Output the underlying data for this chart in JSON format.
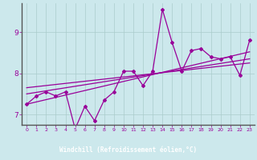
{
  "xlabel": "Windchill (Refroidissement éolien,°C)",
  "bg_color": "#cce8ec",
  "xlabel_bg": "#7b2d8b",
  "line_color": "#990099",
  "grid_color": "#aacccc",
  "xlim": [
    -0.5,
    23.5
  ],
  "ylim": [
    6.75,
    9.7
  ],
  "yticks": [
    7,
    8,
    9
  ],
  "xticks": [
    0,
    1,
    2,
    3,
    4,
    5,
    6,
    7,
    8,
    9,
    10,
    11,
    12,
    13,
    14,
    15,
    16,
    17,
    18,
    19,
    20,
    21,
    22,
    23
  ],
  "main_x": [
    0,
    1,
    2,
    3,
    4,
    5,
    6,
    7,
    8,
    9,
    10,
    11,
    12,
    13,
    14,
    15,
    16,
    17,
    18,
    19,
    20,
    21,
    22,
    23
  ],
  "main_y": [
    7.25,
    7.45,
    7.55,
    7.45,
    7.55,
    6.65,
    7.2,
    6.85,
    7.35,
    7.55,
    8.05,
    8.05,
    7.7,
    8.05,
    9.55,
    8.75,
    8.05,
    8.55,
    8.6,
    8.4,
    8.35,
    8.4,
    7.95,
    8.8
  ],
  "trend1_x": [
    0,
    23
  ],
  "trend1_y": [
    7.25,
    8.52
  ],
  "trend2_x": [
    0,
    23
  ],
  "trend2_y": [
    7.5,
    8.35
  ],
  "trend3_x": [
    0,
    23
  ],
  "trend3_y": [
    7.65,
    8.25
  ]
}
